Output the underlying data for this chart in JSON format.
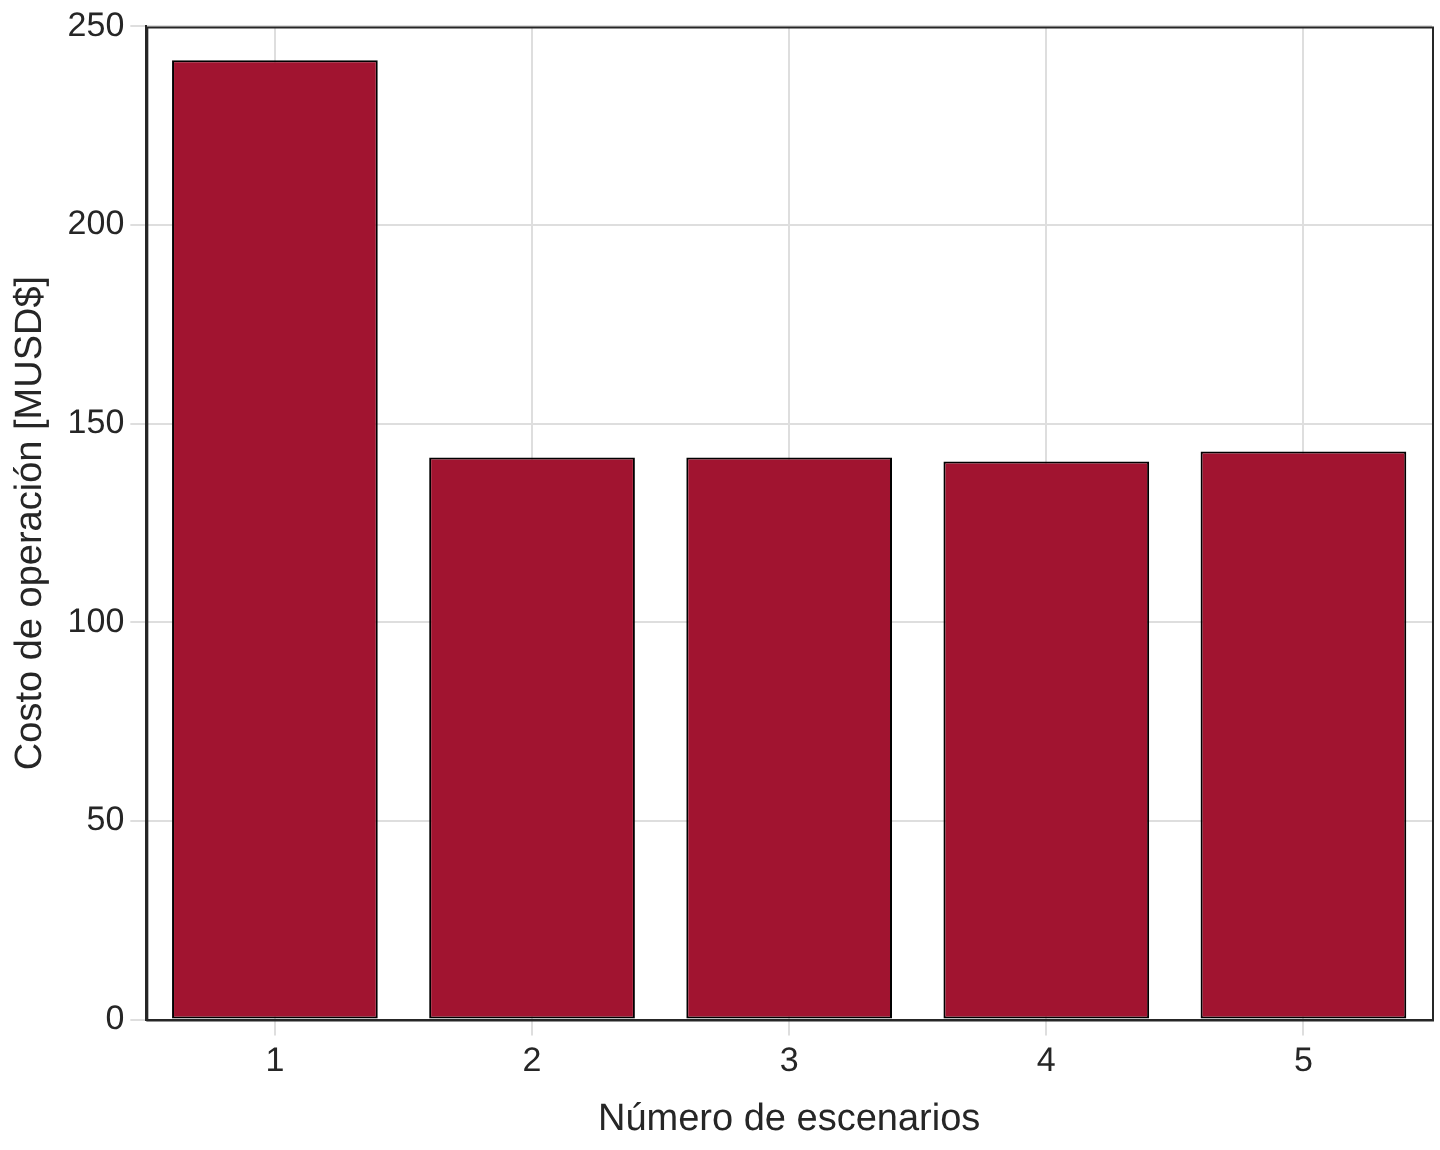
{
  "chart_data": {
    "type": "bar",
    "xlabel": "Número de escenarios",
    "ylabel": "Costo de operación [MUSD$]",
    "categories": [
      "1",
      "2",
      "3",
      "4",
      "5"
    ],
    "values": [
      241.5,
      141.5,
      141.5,
      140.5,
      143
    ],
    "color": "#a11430",
    "ylim": [
      0,
      250
    ],
    "yticks": [
      0,
      50,
      100,
      150,
      200,
      250
    ],
    "grid": true
  }
}
